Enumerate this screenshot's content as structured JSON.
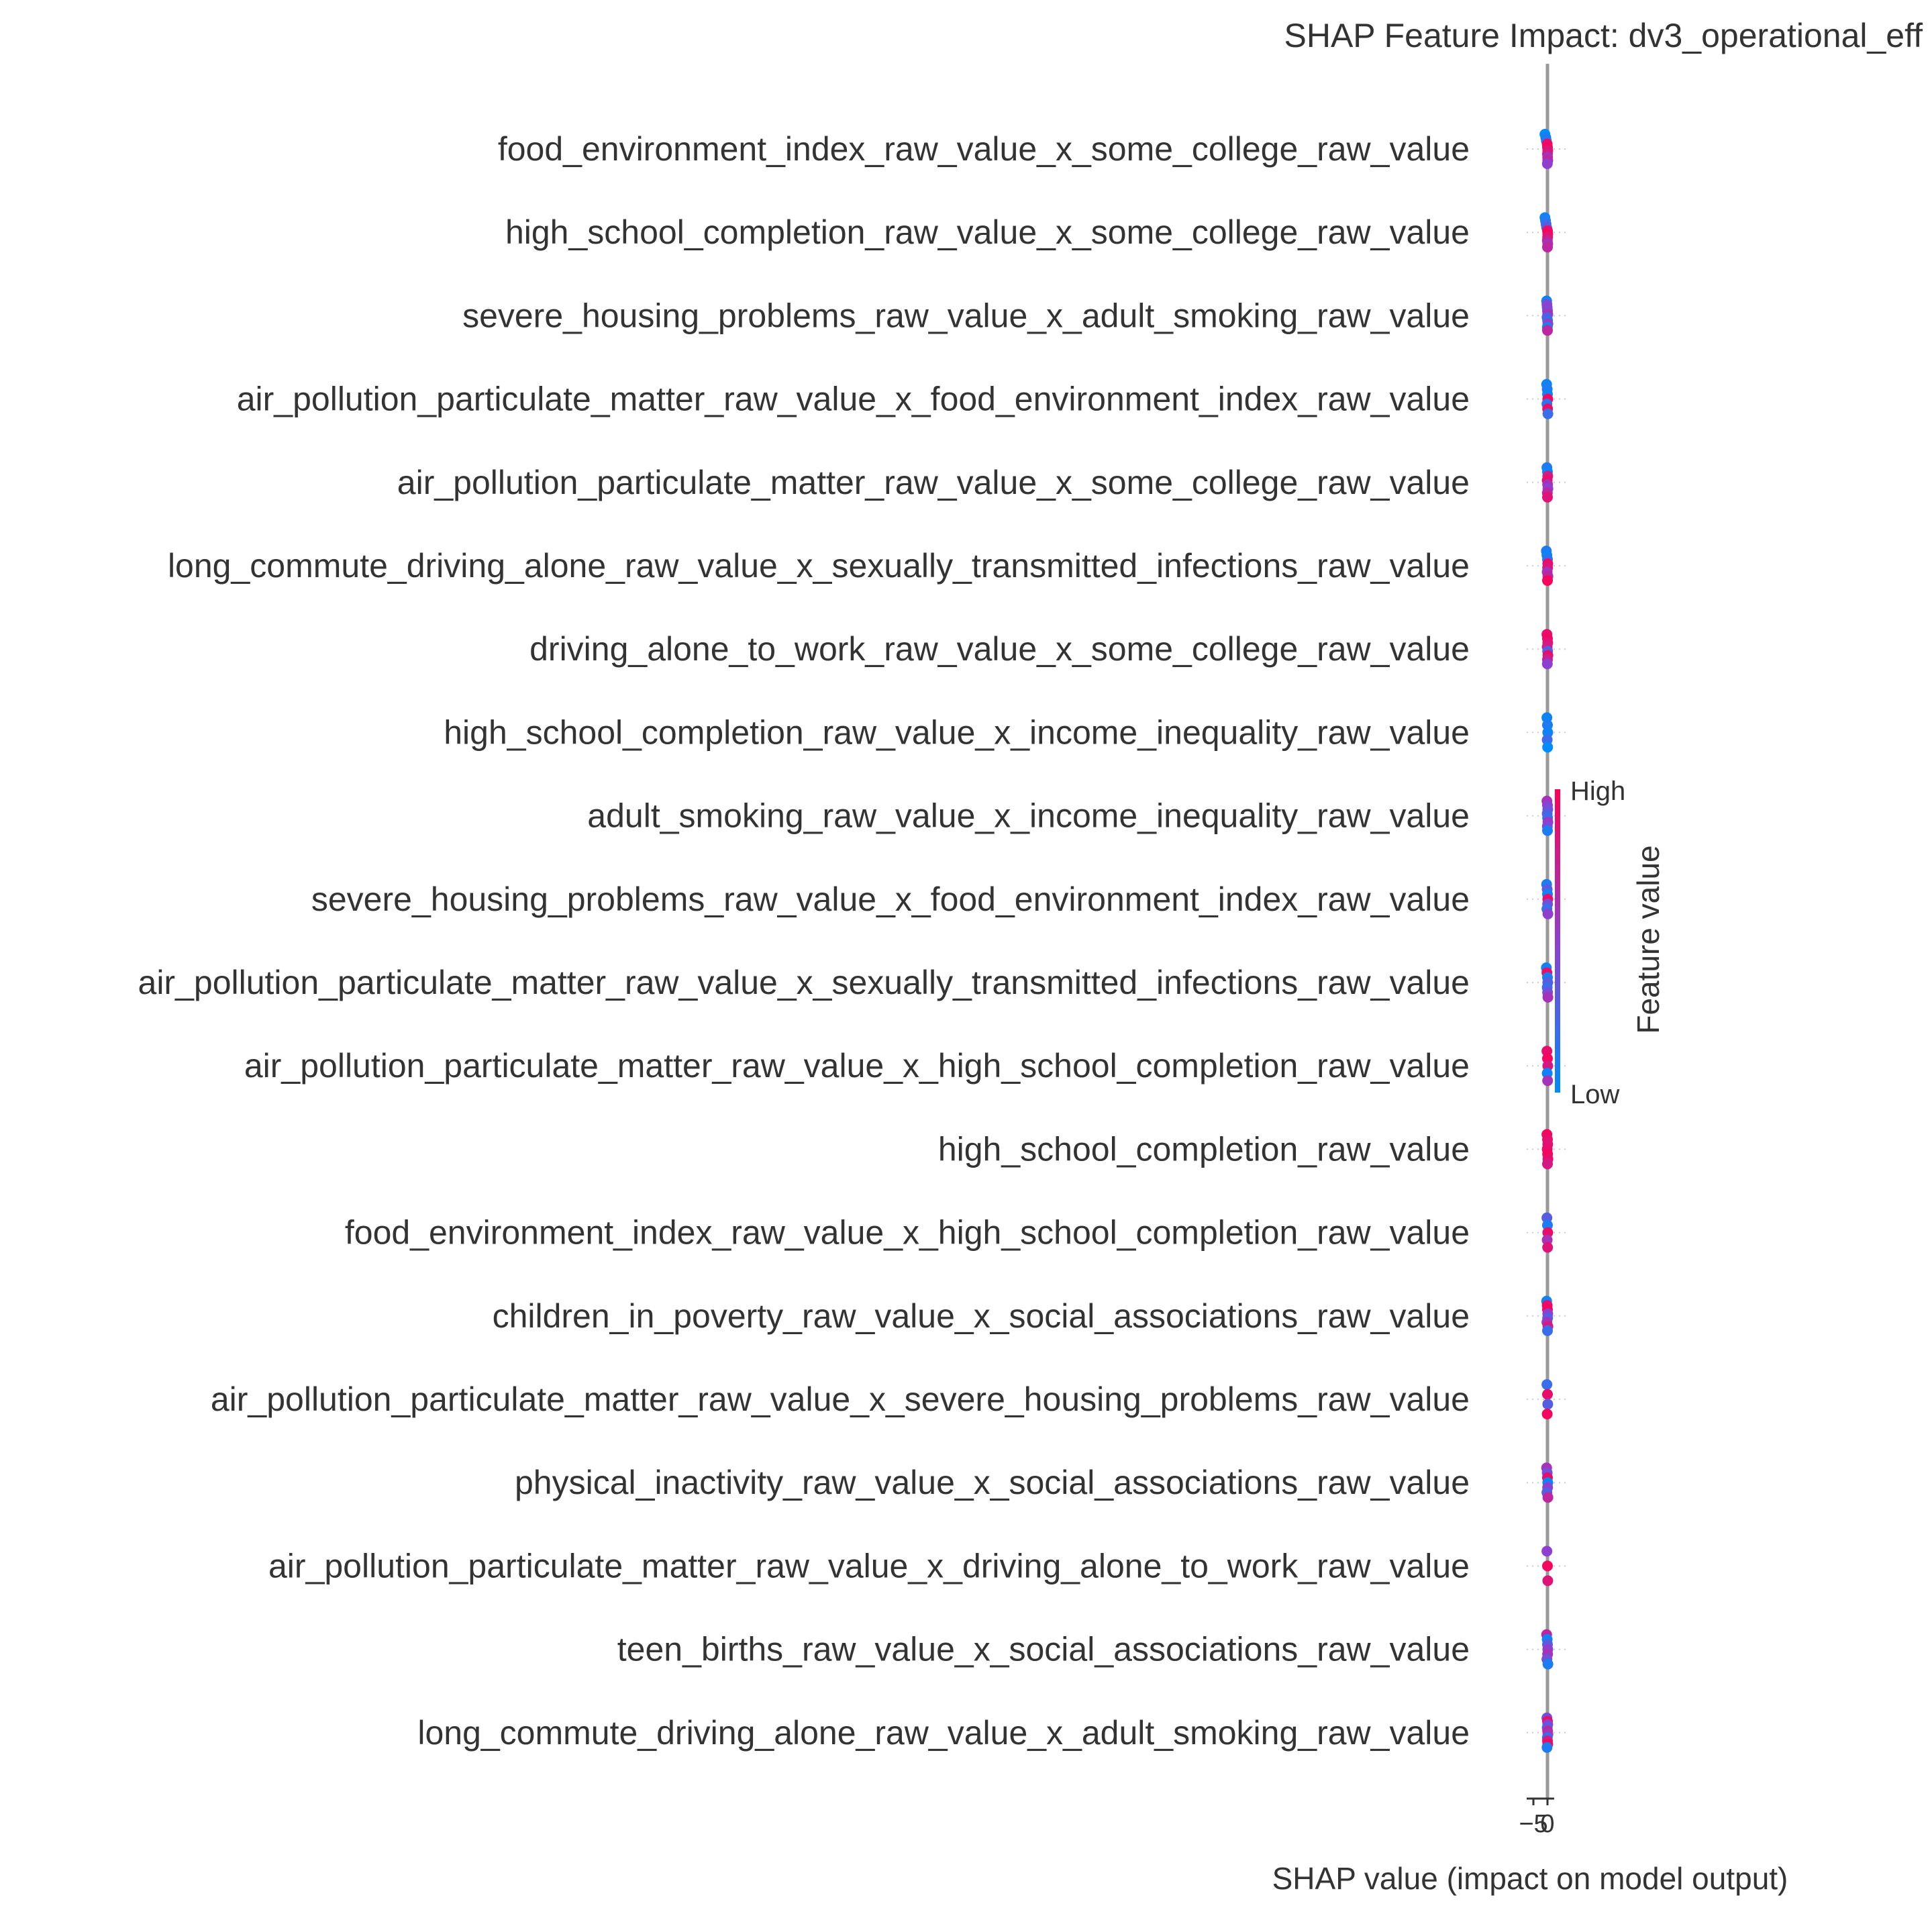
{
  "chart_data": {
    "type": "scatter",
    "subtype": "shap-beeswarm",
    "title": "SHAP Feature Impact: dv3_operational_eff",
    "xlabel": "SHAP value (impact on model output)",
    "ylabel": "",
    "x_ticks": [
      "−5",
      "0"
    ],
    "xlim": [
      -6,
      1
    ],
    "grid": false,
    "colors": {
      "high": "#ff0052",
      "low": "#008bfb",
      "zero_line": "#999999",
      "label": "#333333"
    },
    "colorbar": {
      "title": "Feature value",
      "high_label": "High",
      "low_label": "Low"
    },
    "features": [
      {
        "name": "food_environment_index_raw_value_x_some_college_raw_value",
        "points": [
          [
            -0.9,
            0.0
          ],
          [
            -0.6,
            0.05
          ],
          [
            -0.4,
            0.15
          ],
          [
            -0.1,
            0.9
          ],
          [
            0.0,
            0.95
          ],
          [
            0.1,
            0.85
          ],
          [
            0.0,
            0.8
          ],
          [
            0.05,
            0.6
          ],
          [
            0.1,
            0.7
          ],
          [
            -0.05,
            0.5
          ]
        ]
      },
      {
        "name": "high_school_completion_raw_value_x_some_college_raw_value",
        "points": [
          [
            -0.9,
            0.05
          ],
          [
            -0.7,
            0.1
          ],
          [
            -0.5,
            0.2
          ],
          [
            -0.3,
            0.3
          ],
          [
            0.0,
            0.9
          ],
          [
            0.1,
            0.95
          ],
          [
            0.05,
            0.85
          ],
          [
            -0.05,
            0.75
          ],
          [
            0.1,
            0.6
          ],
          [
            0.0,
            0.7
          ]
        ]
      },
      {
        "name": "severe_housing_problems_raw_value_x_adult_smoking_raw_value",
        "points": [
          [
            -0.3,
            0.05
          ],
          [
            -0.2,
            0.4
          ],
          [
            -0.1,
            0.5
          ],
          [
            0.0,
            0.45
          ],
          [
            0.1,
            0.6
          ],
          [
            -0.15,
            0.3
          ],
          [
            0.05,
            0.2
          ],
          [
            0.15,
            0.55
          ],
          [
            -0.05,
            0.1
          ],
          [
            0.0,
            0.7
          ]
        ]
      },
      {
        "name": "air_pollution_particulate_matter_raw_value_x_food_environment_index_raw_value",
        "points": [
          [
            -0.3,
            0.05
          ],
          [
            -0.1,
            0.1
          ],
          [
            0.0,
            0.05
          ],
          [
            0.1,
            0.95
          ],
          [
            -0.2,
            0.15
          ],
          [
            0.05,
            0.9
          ],
          [
            0.15,
            0.2
          ]
        ]
      },
      {
        "name": "air_pollution_particulate_matter_raw_value_x_some_college_raw_value",
        "points": [
          [
            -0.2,
            0.1
          ],
          [
            0.0,
            0.05
          ],
          [
            0.1,
            0.8
          ],
          [
            -0.1,
            0.9
          ],
          [
            0.05,
            0.6
          ],
          [
            0.15,
            0.5
          ],
          [
            -0.05,
            0.7
          ],
          [
            0.0,
            0.85
          ]
        ]
      },
      {
        "name": "long_commute_driving_alone_raw_value_x_sexually_transmitted_infections_raw_value",
        "points": [
          [
            -0.4,
            0.1
          ],
          [
            -0.2,
            0.05
          ],
          [
            0.0,
            0.15
          ],
          [
            0.1,
            0.9
          ],
          [
            0.05,
            0.85
          ],
          [
            -0.1,
            0.6
          ],
          [
            0.15,
            0.7
          ],
          [
            0.0,
            0.95
          ]
        ]
      },
      {
        "name": "driving_alone_to_work_raw_value_x_some_college_raw_value",
        "points": [
          [
            -0.2,
            0.9
          ],
          [
            0.0,
            0.95
          ],
          [
            0.1,
            0.85
          ],
          [
            -0.1,
            0.8
          ],
          [
            0.05,
            0.3
          ],
          [
            0.15,
            0.9
          ],
          [
            0.0,
            0.75
          ],
          [
            -0.05,
            0.5
          ]
        ]
      },
      {
        "name": "high_school_completion_raw_value_x_income_inequality_raw_value",
        "points": [
          [
            -0.2,
            0.05
          ],
          [
            0.0,
            0.1
          ],
          [
            0.1,
            0.05
          ],
          [
            -0.1,
            0.2
          ],
          [
            0.05,
            0.0
          ]
        ]
      },
      {
        "name": "adult_smoking_raw_value_x_income_inequality_raw_value",
        "points": [
          [
            -0.2,
            0.6
          ],
          [
            0.0,
            0.5
          ],
          [
            0.1,
            0.4
          ],
          [
            -0.1,
            0.3
          ],
          [
            0.05,
            0.2
          ],
          [
            0.15,
            0.55
          ],
          [
            -0.05,
            0.45
          ],
          [
            0.0,
            0.1
          ]
        ]
      },
      {
        "name": "severe_housing_problems_raw_value_x_food_environment_index_raw_value",
        "points": [
          [
            -0.3,
            0.1
          ],
          [
            -0.1,
            0.3
          ],
          [
            0.0,
            0.05
          ],
          [
            0.1,
            0.9
          ],
          [
            0.05,
            0.4
          ],
          [
            -0.2,
            0.2
          ],
          [
            0.15,
            0.5
          ]
        ]
      },
      {
        "name": "air_pollution_particulate_matter_raw_value_x_sexually_transmitted_infections_raw_value",
        "points": [
          [
            -0.4,
            0.05
          ],
          [
            -0.2,
            0.9
          ],
          [
            0.0,
            0.1
          ],
          [
            0.1,
            0.3
          ],
          [
            -0.1,
            0.2
          ],
          [
            0.05,
            0.4
          ],
          [
            0.15,
            0.6
          ]
        ]
      },
      {
        "name": "air_pollution_particulate_matter_raw_value_x_high_school_completion_raw_value",
        "points": [
          [
            -0.2,
            0.9
          ],
          [
            0.0,
            0.95
          ],
          [
            0.1,
            0.8
          ],
          [
            -0.1,
            0.05
          ],
          [
            0.05,
            0.6
          ]
        ]
      },
      {
        "name": "high_school_completion_raw_value",
        "points": [
          [
            -0.2,
            0.95
          ],
          [
            0.0,
            0.9
          ],
          [
            0.1,
            0.85
          ],
          [
            -0.1,
            0.9
          ],
          [
            0.05,
            0.95
          ],
          [
            0.15,
            0.9
          ],
          [
            0.0,
            0.8
          ]
        ]
      },
      {
        "name": "food_environment_index_raw_value_x_high_school_completion_raw_value",
        "points": [
          [
            -0.2,
            0.3
          ],
          [
            0.0,
            0.1
          ],
          [
            0.1,
            0.9
          ],
          [
            -0.1,
            0.6
          ],
          [
            0.05,
            0.85
          ]
        ]
      },
      {
        "name": "children_in_poverty_raw_value_x_social_associations_raw_value",
        "points": [
          [
            -0.3,
            0.05
          ],
          [
            -0.1,
            0.9
          ],
          [
            0.0,
            0.95
          ],
          [
            0.1,
            0.5
          ],
          [
            0.05,
            0.3
          ],
          [
            -0.2,
            0.6
          ],
          [
            0.15,
            0.8
          ],
          [
            0.0,
            0.2
          ]
        ]
      },
      {
        "name": "air_pollution_particulate_matter_raw_value_x_severe_housing_problems_raw_value",
        "points": [
          [
            -0.2,
            0.2
          ],
          [
            0.0,
            0.9
          ],
          [
            0.1,
            0.3
          ],
          [
            -0.1,
            0.95
          ]
        ]
      },
      {
        "name": "physical_inactivity_raw_value_x_social_associations_raw_value",
        "points": [
          [
            -0.3,
            0.6
          ],
          [
            -0.1,
            0.4
          ],
          [
            0.0,
            0.9
          ],
          [
            0.1,
            0.05
          ],
          [
            0.05,
            0.5
          ],
          [
            -0.2,
            0.3
          ],
          [
            0.15,
            0.7
          ]
        ]
      },
      {
        "name": "air_pollution_particulate_matter_raw_value_x_driving_alone_to_work_raw_value",
        "points": [
          [
            -0.2,
            0.5
          ],
          [
            0.0,
            0.95
          ],
          [
            0.1,
            0.85
          ]
        ]
      },
      {
        "name": "teen_births_raw_value_x_social_associations_raw_value",
        "points": [
          [
            -0.3,
            0.7
          ],
          [
            -0.1,
            0.05
          ],
          [
            0.0,
            0.3
          ],
          [
            0.1,
            0.5
          ],
          [
            0.05,
            0.6
          ],
          [
            -0.2,
            0.4
          ],
          [
            0.15,
            0.1
          ]
        ]
      },
      {
        "name": "long_commute_driving_alone_raw_value_x_adult_smoking_raw_value",
        "points": [
          [
            -0.2,
            0.4
          ],
          [
            0.0,
            0.9
          ],
          [
            0.1,
            0.5
          ],
          [
            -0.1,
            0.3
          ],
          [
            0.05,
            0.7
          ],
          [
            0.15,
            0.6
          ],
          [
            -0.05,
            0.2
          ],
          [
            0.0,
            0.8
          ],
          [
            0.1,
            0.95
          ],
          [
            -0.15,
            0.1
          ]
        ]
      }
    ]
  }
}
